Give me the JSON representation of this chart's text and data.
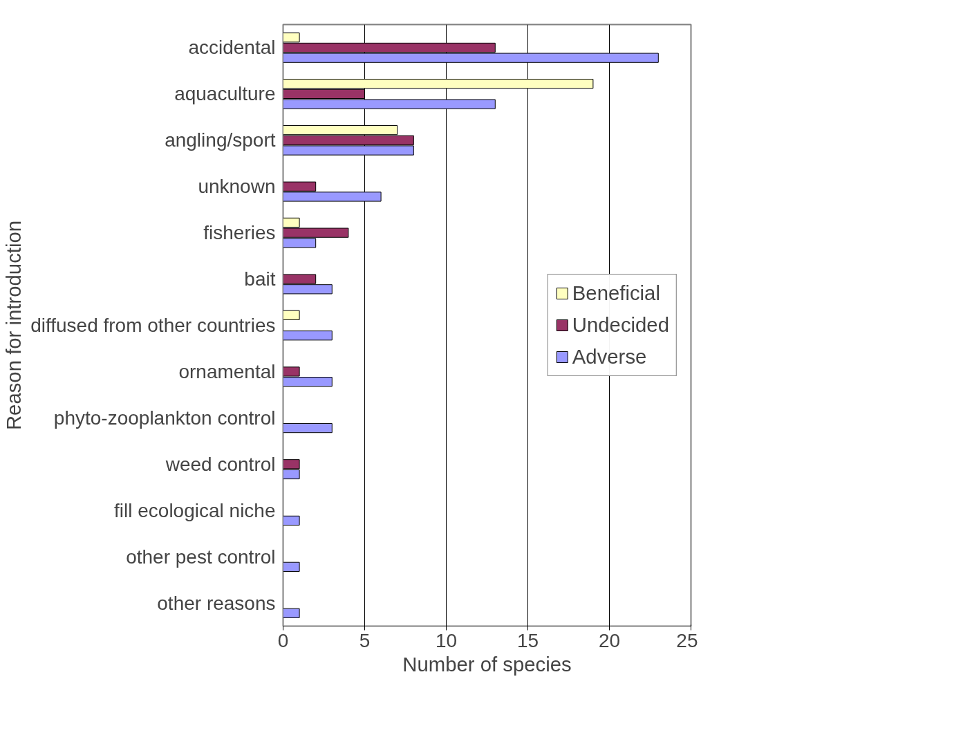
{
  "chart_data": {
    "type": "bar",
    "orientation": "horizontal",
    "xlabel": "Number of species",
    "ylabel": "Reason for introduction",
    "categories": [
      "accidental",
      "aquaculture",
      "angling/sport",
      "unknown",
      "fisheries",
      "bait",
      "diffused from other countries",
      "ornamental",
      "phyto-zooplankton control",
      "weed control",
      "fill ecological niche",
      "other pest control",
      "other reasons"
    ],
    "series": [
      {
        "name": "Beneficial",
        "color": "#ffffc0",
        "values": [
          1,
          19,
          7,
          null,
          1,
          null,
          1,
          null,
          null,
          null,
          null,
          null,
          null
        ]
      },
      {
        "name": "Undecided",
        "color": "#993366",
        "values": [
          13,
          5,
          8,
          2,
          4,
          2,
          null,
          1,
          null,
          1,
          null,
          null,
          null
        ]
      },
      {
        "name": "Adverse",
        "color": "#9999ff",
        "values": [
          23,
          13,
          8,
          6,
          2,
          3,
          3,
          3,
          3,
          1,
          1,
          1,
          1
        ]
      }
    ],
    "xlim": [
      0,
      25
    ],
    "xticks": [
      0,
      5,
      10,
      15,
      20,
      25
    ],
    "grid": "x",
    "legend": "right"
  }
}
